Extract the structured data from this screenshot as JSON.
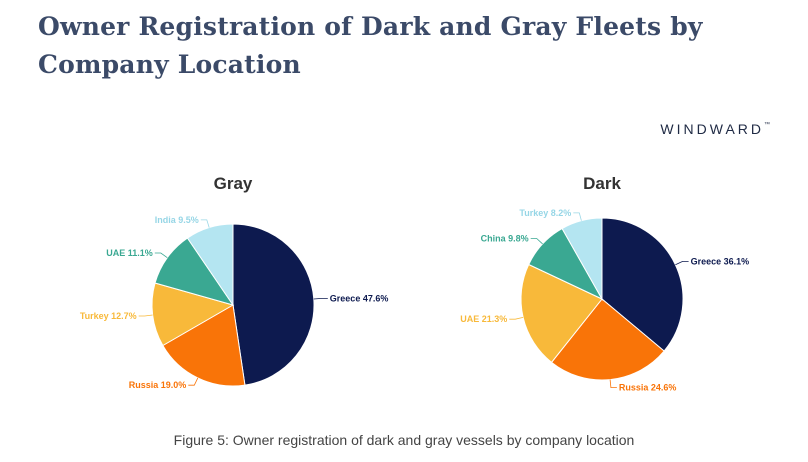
{
  "title": "Owner Registration of Dark and Gray Fleets by Company Location",
  "logo": "WINDWARD",
  "logo_mark": "™",
  "caption": "Figure 5: Owner registration of dark and gray vessels by company location",
  "chart_data": [
    {
      "type": "pie",
      "title": "Gray",
      "unit": "%",
      "slices": [
        {
          "label": "Greece",
          "value": 47.6,
          "color": "#0d1a4f"
        },
        {
          "label": "Russia",
          "value": 19.0,
          "color": "#f97408"
        },
        {
          "label": "Turkey",
          "value": 12.7,
          "color": "#f8b93a"
        },
        {
          "label": "UAE",
          "value": 11.1,
          "color": "#3aa892"
        },
        {
          "label": "India",
          "value": 9.5,
          "color": "#b4e5f1"
        }
      ]
    },
    {
      "type": "pie",
      "title": "Dark",
      "unit": "%",
      "slices": [
        {
          "label": "Greece",
          "value": 36.1,
          "color": "#0d1a4f"
        },
        {
          "label": "Russia",
          "value": 24.6,
          "color": "#f97408"
        },
        {
          "label": "UAE",
          "value": 21.3,
          "color": "#f8b93a"
        },
        {
          "label": "China",
          "value": 9.8,
          "color": "#3aa892"
        },
        {
          "label": "Turkey",
          "value": 8.2,
          "color": "#b4e5f1"
        }
      ]
    }
  ]
}
